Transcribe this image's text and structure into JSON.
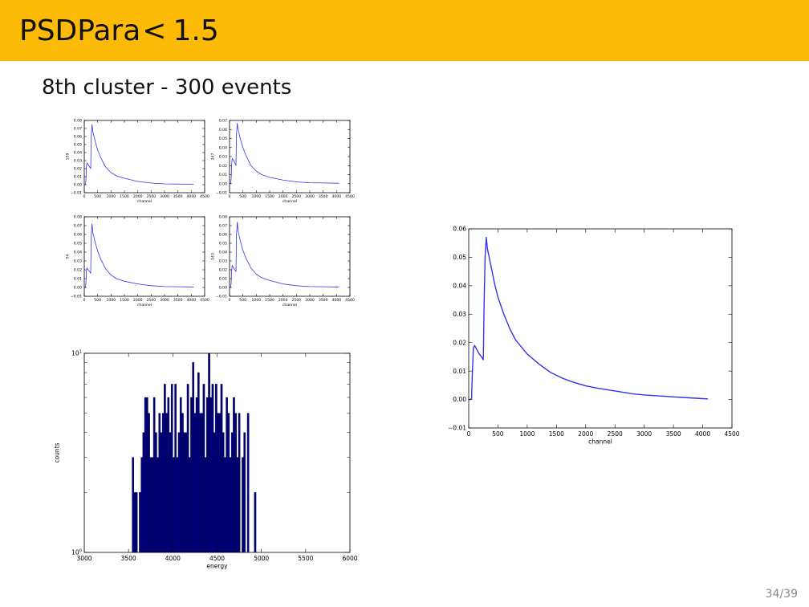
{
  "slide": {
    "title_main": "PSDPara",
    "title_op": "<",
    "title_value": "1.5",
    "subtitle": "8th cluster - 300 events",
    "page": "34/39"
  },
  "colors": {
    "header": "#FDBB07",
    "line": "#3333ee",
    "bar": "#000080",
    "bar_edge": "#000033"
  },
  "chart_data": [
    {
      "type": "line",
      "id": "small-1",
      "xlabel": "channel",
      "ylabel": "159",
      "xlim": [
        0,
        4500
      ],
      "ylim": [
        -0.01,
        0.08
      ],
      "xticks": [
        "0",
        "500",
        "1000",
        "1500",
        "2000",
        "2500",
        "3000",
        "3500",
        "4000",
        "4500"
      ],
      "yticks": [
        "−0.01",
        "0.00",
        "0.01",
        "0.02",
        "0.03",
        "0.04",
        "0.05",
        "0.06",
        "0.07",
        "0.08"
      ],
      "series": [
        {
          "x": [
            0,
            40,
            60,
            80,
            100,
            150,
            200,
            240,
            260,
            290,
            320,
            400,
            500,
            600,
            700,
            800,
            1000,
            1200,
            1500,
            2000,
            2500,
            3000,
            3500,
            4000,
            4090
          ],
          "y": [
            0,
            0,
            0.005,
            0.022,
            0.027,
            0.025,
            0.022,
            0.02,
            0.06,
            0.075,
            0.066,
            0.055,
            0.043,
            0.035,
            0.028,
            0.022,
            0.015,
            0.011,
            0.008,
            0.004,
            0.002,
            0.001,
            0.0008,
            0.0005,
            0.0005
          ]
        }
      ]
    },
    {
      "type": "line",
      "id": "small-2",
      "xlabel": "channel",
      "ylabel": "247",
      "xlim": [
        0,
        4500
      ],
      "ylim": [
        -0.01,
        0.07
      ],
      "xticks": [
        "0",
        "500",
        "1000",
        "1500",
        "2000",
        "2500",
        "3000",
        "3500",
        "4000",
        "4500"
      ],
      "yticks": [
        "−0.01",
        "0.00",
        "0.01",
        "0.02",
        "0.03",
        "0.04",
        "0.05",
        "0.06",
        "0.07"
      ],
      "series": [
        {
          "x": [
            0,
            40,
            60,
            80,
            100,
            150,
            200,
            240,
            260,
            290,
            320,
            400,
            500,
            600,
            700,
            800,
            1000,
            1200,
            1500,
            2000,
            2500,
            3000,
            3500,
            4000,
            4090
          ],
          "y": [
            0,
            0,
            0.005,
            0.022,
            0.028,
            0.026,
            0.023,
            0.02,
            0.055,
            0.067,
            0.06,
            0.05,
            0.04,
            0.032,
            0.026,
            0.02,
            0.014,
            0.01,
            0.007,
            0.004,
            0.002,
            0.001,
            0.0008,
            0.0005,
            0.0005
          ]
        }
      ]
    },
    {
      "type": "line",
      "id": "small-3",
      "xlabel": "channel",
      "ylabel": "54",
      "xlim": [
        0,
        4500
      ],
      "ylim": [
        -0.01,
        0.08
      ],
      "xticks": [
        "0",
        "500",
        "1000",
        "1500",
        "2000",
        "2500",
        "3000",
        "3500",
        "4000",
        "4500"
      ],
      "yticks": [
        "−0.01",
        "0.00",
        "0.01",
        "0.02",
        "0.03",
        "0.04",
        "0.05",
        "0.06",
        "0.07",
        "0.08"
      ],
      "series": [
        {
          "x": [
            0,
            40,
            60,
            80,
            100,
            150,
            200,
            240,
            260,
            290,
            320,
            400,
            500,
            600,
            700,
            800,
            1000,
            1200,
            1500,
            2000,
            2500,
            3000,
            3500,
            4000,
            4090
          ],
          "y": [
            0,
            0,
            0.005,
            0.018,
            0.022,
            0.02,
            0.018,
            0.016,
            0.058,
            0.072,
            0.062,
            0.052,
            0.041,
            0.033,
            0.027,
            0.021,
            0.014,
            0.01,
            0.007,
            0.004,
            0.002,
            0.001,
            0.0008,
            0.0005,
            0.0005
          ]
        }
      ]
    },
    {
      "type": "line",
      "id": "small-4",
      "xlabel": "channel",
      "ylabel": "143",
      "xlim": [
        0,
        4500
      ],
      "ylim": [
        -0.01,
        0.08
      ],
      "xticks": [
        "0",
        "500",
        "1000",
        "1500",
        "2000",
        "2500",
        "3000",
        "3500",
        "4000",
        "4500"
      ],
      "yticks": [
        "−0.01",
        "0.00",
        "0.01",
        "0.02",
        "0.03",
        "0.04",
        "0.05",
        "0.06",
        "0.07",
        "0.08"
      ],
      "series": [
        {
          "x": [
            0,
            40,
            60,
            80,
            100,
            150,
            200,
            240,
            260,
            290,
            320,
            400,
            500,
            600,
            700,
            800,
            1000,
            1200,
            1500,
            2000,
            2500,
            3000,
            3500,
            4000,
            4090
          ],
          "y": [
            0,
            0,
            0.005,
            0.02,
            0.025,
            0.022,
            0.02,
            0.018,
            0.06,
            0.074,
            0.064,
            0.053,
            0.042,
            0.034,
            0.028,
            0.022,
            0.015,
            0.011,
            0.008,
            0.004,
            0.002,
            0.001,
            0.0008,
            0.0005,
            0.0005
          ]
        }
      ]
    },
    {
      "type": "bar",
      "id": "histogram",
      "xlabel": "energy",
      "ylabel": "counts",
      "yscale": "log",
      "xlim": [
        3000,
        6000
      ],
      "ylim": [
        1,
        10
      ],
      "xticks": [
        "3000",
        "3500",
        "4000",
        "4500",
        "5000",
        "5500",
        "6000"
      ],
      "yticks": [
        {
          "base": "10",
          "exp": "0"
        },
        {
          "base": "10",
          "exp": "1"
        }
      ],
      "bin_width": 20,
      "x": [
        3550,
        3570,
        3590,
        3630,
        3650,
        3670,
        3690,
        3710,
        3730,
        3750,
        3770,
        3790,
        3810,
        3830,
        3850,
        3870,
        3890,
        3910,
        3930,
        3950,
        3970,
        3990,
        4010,
        4030,
        4050,
        4070,
        4090,
        4110,
        4130,
        4150,
        4170,
        4190,
        4210,
        4230,
        4250,
        4270,
        4290,
        4310,
        4330,
        4350,
        4370,
        4390,
        4410,
        4430,
        4450,
        4470,
        4490,
        4510,
        4530,
        4550,
        4570,
        4590,
        4610,
        4630,
        4650,
        4670,
        4690,
        4710,
        4730,
        4750,
        4790,
        4810,
        4850,
        4930
      ],
      "values": [
        3,
        2,
        2,
        2,
        3,
        4,
        6,
        6,
        5,
        3,
        3,
        6,
        4,
        3,
        5,
        4,
        5,
        7,
        5,
        6,
        4,
        7,
        3,
        7,
        3,
        4,
        6,
        5,
        4,
        4,
        7,
        3,
        6,
        9,
        5,
        6,
        8,
        5,
        5,
        7,
        3,
        6,
        10,
        6,
        7,
        4,
        7,
        5,
        5,
        7,
        4,
        3,
        6,
        5,
        3,
        4,
        6,
        5,
        3,
        5,
        3,
        4,
        5,
        2
      ]
    },
    {
      "type": "line",
      "id": "average",
      "xlabel": "channel",
      "ylabel": "",
      "xlim": [
        0,
        4500
      ],
      "ylim": [
        -0.01,
        0.06
      ],
      "xticks": [
        "0",
        "500",
        "1000",
        "1500",
        "2000",
        "2500",
        "3000",
        "3500",
        "4000",
        "4500"
      ],
      "yticks": [
        "−0.01",
        "0.00",
        "0.01",
        "0.02",
        "0.03",
        "0.04",
        "0.05",
        "0.06"
      ],
      "series": [
        {
          "x": [
            0,
            30,
            50,
            60,
            80,
            100,
            140,
            180,
            220,
            250,
            260,
            280,
            300,
            320,
            360,
            400,
            450,
            500,
            600,
            700,
            800,
            900,
            1000,
            1200,
            1400,
            1600,
            1800,
            2000,
            2200,
            2500,
            2800,
            3000,
            3300,
            3600,
            4000,
            4090
          ],
          "y": [
            0,
            0,
            0.0005,
            0.008,
            0.018,
            0.019,
            0.0175,
            0.016,
            0.015,
            0.014,
            0.03,
            0.05,
            0.057,
            0.053,
            0.049,
            0.045,
            0.04,
            0.036,
            0.03,
            0.025,
            0.021,
            0.0185,
            0.016,
            0.0125,
            0.0095,
            0.0075,
            0.006,
            0.0048,
            0.004,
            0.003,
            0.002,
            0.0016,
            0.0012,
            0.0008,
            0.0003,
            0.0002
          ]
        }
      ]
    }
  ]
}
